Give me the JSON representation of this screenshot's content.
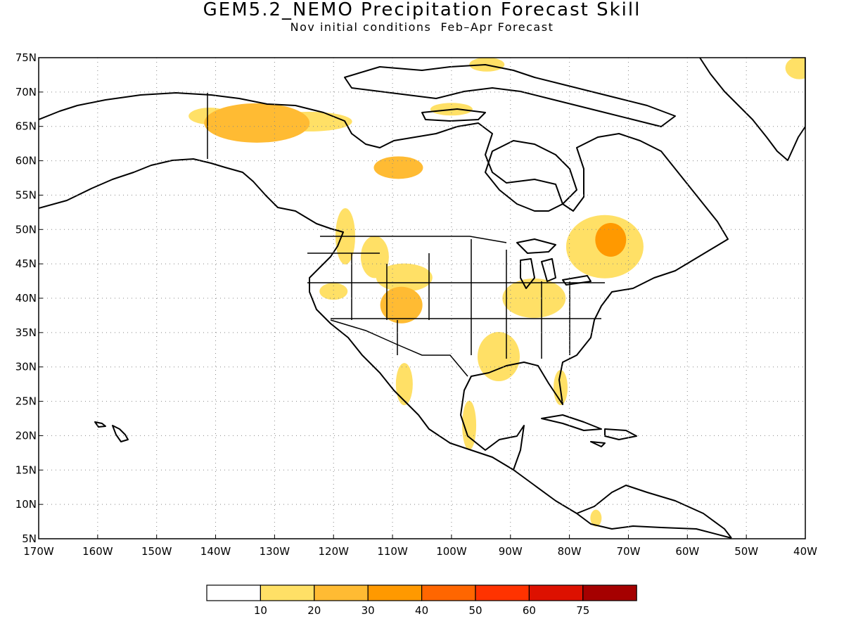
{
  "title": "GEM5.2_NEMO Precipitation Forecast Skill",
  "subtitle": "Nov initial conditions  Feb–Apr Forecast",
  "map": {
    "lon_range": [
      -170,
      -40
    ],
    "lat_range": [
      5,
      75
    ],
    "lat_labels": [
      "75N",
      "70N",
      "65N",
      "60N",
      "55N",
      "50N",
      "45N",
      "40N",
      "35N",
      "30N",
      "25N",
      "20N",
      "15N",
      "10N",
      "5N"
    ],
    "lon_labels": [
      "170W",
      "160W",
      "150W",
      "140W",
      "130W",
      "120W",
      "110W",
      "100W",
      "90W",
      "80W",
      "70W",
      "60W",
      "50W",
      "40W"
    ],
    "gridlines": "dotted",
    "skill_regions": [
      {
        "name": "alaska-yukon",
        "lon": -133,
        "lat": 65.5,
        "level": 20
      },
      {
        "name": "yukon-north",
        "lon": -124,
        "lat": 65.7,
        "level": 10
      },
      {
        "name": "alaska-west",
        "lon": -141,
        "lat": 66.5,
        "level": 10
      },
      {
        "name": "hudson-east",
        "lon": -109,
        "lat": 59,
        "level": 20
      },
      {
        "name": "nw-territory",
        "lon": -100,
        "lat": 67.5,
        "level": 10
      },
      {
        "name": "arctic-islands",
        "lon": -94,
        "lat": 74,
        "level": 10
      },
      {
        "name": "greenland-ne",
        "lon": -41,
        "lat": 73.5,
        "level": 10
      },
      {
        "name": "pacific-nw",
        "lon": -118,
        "lat": 49,
        "level": 10
      },
      {
        "name": "rockies-north",
        "lon": -113,
        "lat": 46,
        "level": 10
      },
      {
        "name": "wyoming",
        "lon": -108,
        "lat": 43,
        "level": 10
      },
      {
        "name": "colorado",
        "lon": -108.5,
        "lat": 39,
        "level": 20
      },
      {
        "name": "great-basin",
        "lon": -120,
        "lat": 41,
        "level": 10
      },
      {
        "name": "quebec",
        "lon": -73,
        "lat": 48.5,
        "level": 30
      },
      {
        "name": "quebec-outer",
        "lon": -74,
        "lat": 47.5,
        "level": 10
      },
      {
        "name": "ohio-valley",
        "lon": -86,
        "lat": 40,
        "level": 10
      },
      {
        "name": "lower-mississippi",
        "lon": -92,
        "lat": 31.5,
        "level": 10
      },
      {
        "name": "florida",
        "lon": -81.5,
        "lat": 27,
        "level": 10
      },
      {
        "name": "baja",
        "lon": -108,
        "lat": 27.5,
        "level": 10
      },
      {
        "name": "gulf-mexico-west",
        "lon": -97,
        "lat": 21.5,
        "level": 10
      },
      {
        "name": "colombia",
        "lon": -75.5,
        "lat": 8,
        "level": 10
      }
    ]
  },
  "legend": {
    "levels": [
      "10",
      "20",
      "30",
      "40",
      "50",
      "60",
      "75"
    ],
    "colors": [
      "#ffffff",
      "#ffe066",
      "#ffbb33",
      "#ff9900",
      "#ff6600",
      "#ff3300",
      "#dd1100",
      "#a50000"
    ]
  }
}
